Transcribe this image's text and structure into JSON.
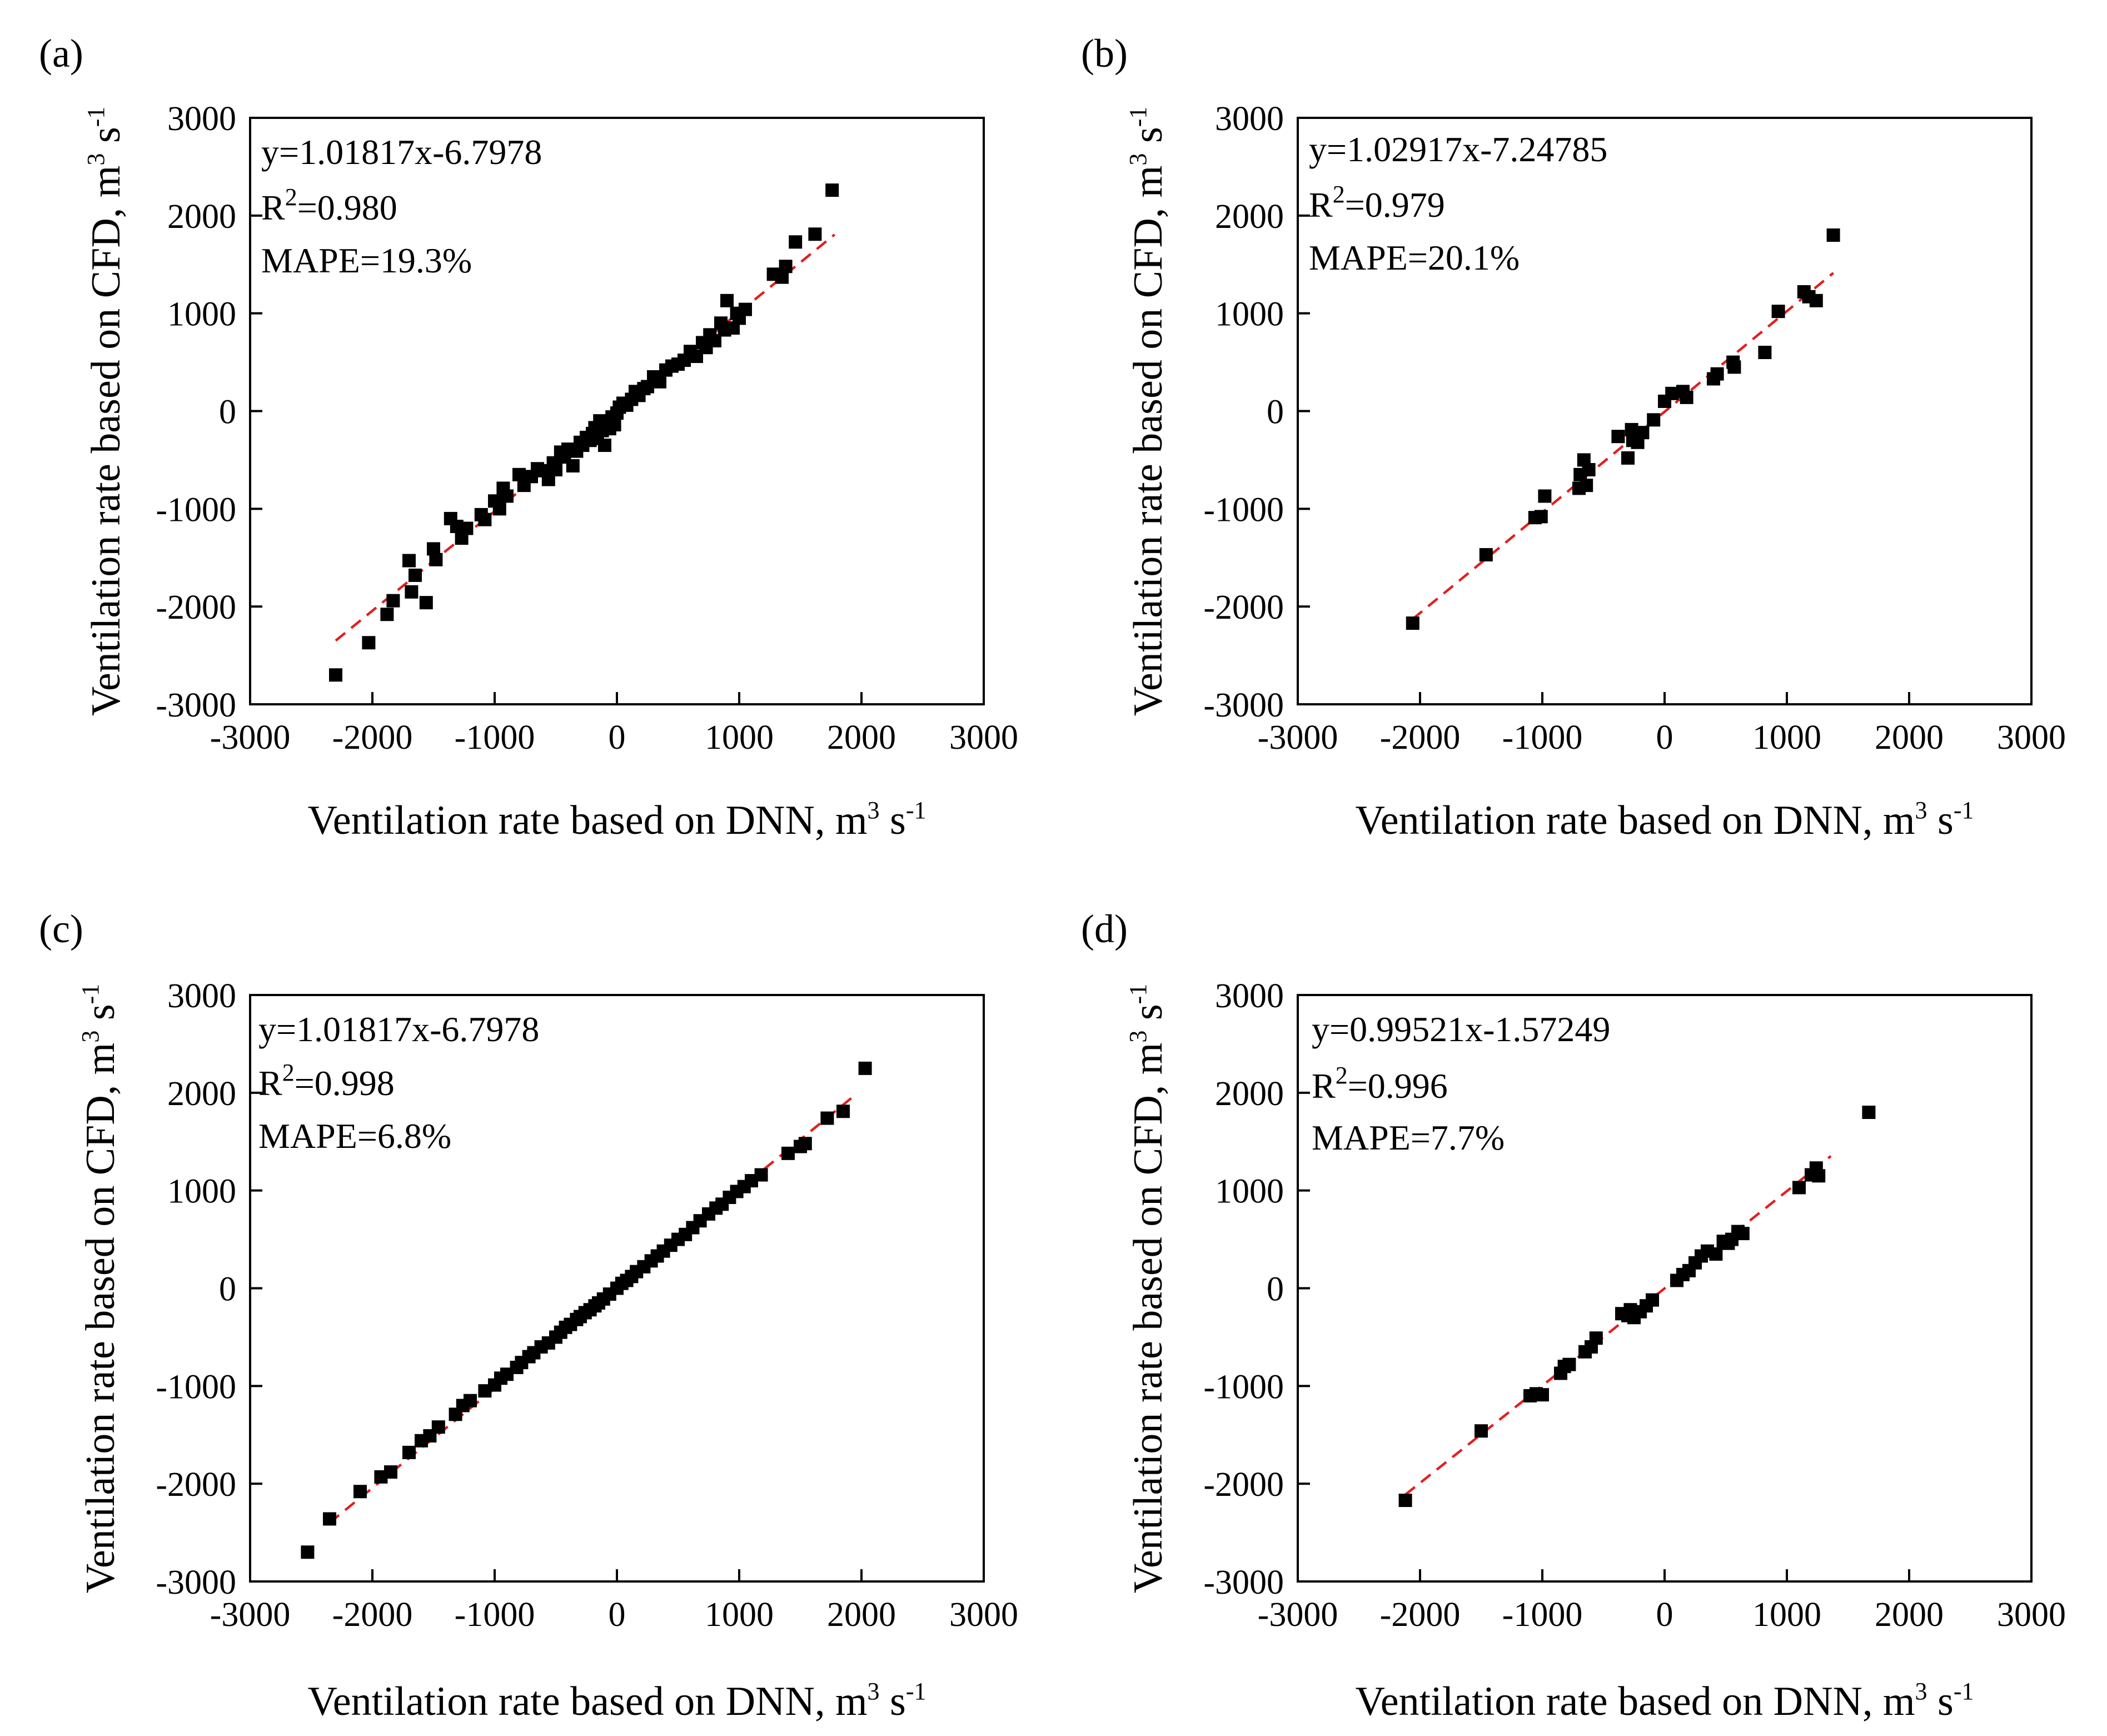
{
  "figure": {
    "panels": [
      {
        "label": "(a)",
        "annotations": {
          "equation": "y=1.01817x-6.7978",
          "r2_prefix": "R",
          "r2_sup": "2",
          "r2_value": "=0.980",
          "mape": "MAPE=19.3%"
        },
        "xlabel": {
          "text": "Ventilation rate based on DNN, m",
          "sup1": "3",
          "mid": " s",
          "sup2": "-1"
        },
        "ylabel": {
          "text": "Ventilation rate based on CFD, m",
          "sup1": "3",
          "mid": " s",
          "sup2": "-1"
        }
      },
      {
        "label": "(b)",
        "annotations": {
          "equation": "y=1.02917x-7.24785",
          "r2_prefix": "R",
          "r2_sup": "2",
          "r2_value": "=0.979",
          "mape": "MAPE=20.1%"
        },
        "xlabel": {
          "text": "Ventilation rate based on DNN, m",
          "sup1": "3",
          "mid": " s",
          "sup2": "-1"
        },
        "ylabel": {
          "text": "Ventilation rate based on CFD, m",
          "sup1": "3",
          "mid": " s",
          "sup2": "-1"
        }
      },
      {
        "label": "(c)",
        "annotations": {
          "equation": "y=1.01817x-6.7978",
          "r2_prefix": "R",
          "r2_sup": "2",
          "r2_value": "=0.998",
          "mape": "MAPE=6.8%"
        },
        "xlabel": {
          "text": "Ventilation rate based on DNN, m",
          "sup1": "3",
          "mid": " s",
          "sup2": "-1"
        },
        "ylabel": {
          "text": "Ventilation rate based on CFD, m",
          "sup1": "3",
          "mid": " s",
          "sup2": "-1"
        }
      },
      {
        "label": "(d)",
        "annotations": {
          "equation": "y=0.99521x-1.57249",
          "r2_prefix": "R",
          "r2_sup": "2",
          "r2_value": "=0.996",
          "mape": "MAPE=7.7%"
        },
        "xlabel": {
          "text": "Ventilation rate based on DNN, m",
          "sup1": "3",
          "mid": " s",
          "sup2": "-1"
        },
        "ylabel": {
          "text": "Ventilation rate based on CFD, m",
          "sup1": "3",
          "mid": " s",
          "sup2": "-1"
        }
      }
    ]
  },
  "chart_data": [
    {
      "type": "scatter",
      "panel": "(a)",
      "xlim": [
        -3000,
        3000
      ],
      "ylim": [
        -3000,
        3000
      ],
      "xticks": [
        -3000,
        -2000,
        -1000,
        0,
        1000,
        2000,
        3000
      ],
      "yticks": [
        -3000,
        -2000,
        -1000,
        0,
        1000,
        2000,
        3000
      ],
      "fit": {
        "slope": 1.01817,
        "intercept": -6.7978,
        "x_range": [
          -2300,
          1780
        ],
        "color": "#e02020",
        "style": "dashed"
      },
      "marker_color": "#000000",
      "points": [
        [
          -2300,
          -2700
        ],
        [
          -2030,
          -2370
        ],
        [
          -1880,
          -2080
        ],
        [
          -1830,
          -1940
        ],
        [
          -1700,
          -1530
        ],
        [
          -1680,
          -1850
        ],
        [
          -1650,
          -1680
        ],
        [
          -1560,
          -1960
        ],
        [
          -1500,
          -1410
        ],
        [
          -1480,
          -1520
        ],
        [
          -1360,
          -1100
        ],
        [
          -1310,
          -1180
        ],
        [
          -1270,
          -1300
        ],
        [
          -1230,
          -1200
        ],
        [
          -1110,
          -1060
        ],
        [
          -1080,
          -1110
        ],
        [
          -1000,
          -920
        ],
        [
          -960,
          -1000
        ],
        [
          -930,
          -790
        ],
        [
          -900,
          -870
        ],
        [
          -800,
          -650
        ],
        [
          -760,
          -760
        ],
        [
          -700,
          -670
        ],
        [
          -650,
          -590
        ],
        [
          -600,
          -610
        ],
        [
          -560,
          -700
        ],
        [
          -520,
          -530
        ],
        [
          -500,
          -600
        ],
        [
          -460,
          -420
        ],
        [
          -430,
          -470
        ],
        [
          -400,
          -390
        ],
        [
          -360,
          -560
        ],
        [
          -330,
          -410
        ],
        [
          -300,
          -320
        ],
        [
          -280,
          -350
        ],
        [
          -250,
          -270
        ],
        [
          -220,
          -300
        ],
        [
          -200,
          -230
        ],
        [
          -180,
          -170
        ],
        [
          -160,
          -280
        ],
        [
          -140,
          -100
        ],
        [
          -120,
          -200
        ],
        [
          -100,
          -350
        ],
        [
          -80,
          -120
        ],
        [
          -60,
          -180
        ],
        [
          -40,
          -60
        ],
        [
          -20,
          -140
        ],
        [
          0,
          -20
        ],
        [
          20,
          40
        ],
        [
          50,
          80
        ],
        [
          80,
          60
        ],
        [
          120,
          120
        ],
        [
          150,
          200
        ],
        [
          180,
          160
        ],
        [
          220,
          230
        ],
        [
          250,
          250
        ],
        [
          300,
          350
        ],
        [
          350,
          300
        ],
        [
          400,
          420
        ],
        [
          450,
          460
        ],
        [
          500,
          480
        ],
        [
          550,
          520
        ],
        [
          600,
          610
        ],
        [
          650,
          560
        ],
        [
          700,
          700
        ],
        [
          730,
          650
        ],
        [
          760,
          780
        ],
        [
          800,
          720
        ],
        [
          850,
          900
        ],
        [
          880,
          830
        ],
        [
          900,
          1130
        ],
        [
          950,
          850
        ],
        [
          980,
          1000
        ],
        [
          1000,
          950
        ],
        [
          1050,
          1040
        ],
        [
          1280,
          1400
        ],
        [
          1350,
          1370
        ],
        [
          1380,
          1480
        ],
        [
          1460,
          1730
        ],
        [
          1620,
          1810
        ],
        [
          1760,
          2260
        ]
      ]
    },
    {
      "type": "scatter",
      "panel": "(b)",
      "xlim": [
        -3000,
        3000
      ],
      "ylim": [
        -3000,
        3000
      ],
      "xticks": [
        -3000,
        -2000,
        -1000,
        0,
        1000,
        2000,
        3000
      ],
      "yticks": [
        -3000,
        -2000,
        -1000,
        0,
        1000,
        2000,
        3000
      ],
      "fit": {
        "slope": 1.02917,
        "intercept": -7.24785,
        "x_range": [
          -2060,
          1380
        ],
        "color": "#e02020",
        "style": "dashed"
      },
      "marker_color": "#000000",
      "points": [
        [
          -2060,
          -2170
        ],
        [
          -1460,
          -1470
        ],
        [
          -1060,
          -1090
        ],
        [
          -1010,
          -1080
        ],
        [
          -980,
          -870
        ],
        [
          -700,
          -790
        ],
        [
          -690,
          -650
        ],
        [
          -660,
          -500
        ],
        [
          -640,
          -760
        ],
        [
          -620,
          -600
        ],
        [
          -380,
          -260
        ],
        [
          -300,
          -480
        ],
        [
          -270,
          -190
        ],
        [
          -260,
          -300
        ],
        [
          -220,
          -320
        ],
        [
          -180,
          -220
        ],
        [
          -90,
          -90
        ],
        [
          0,
          100
        ],
        [
          60,
          180
        ],
        [
          150,
          200
        ],
        [
          180,
          140
        ],
        [
          400,
          330
        ],
        [
          430,
          380
        ],
        [
          560,
          500
        ],
        [
          570,
          450
        ],
        [
          820,
          600
        ],
        [
          930,
          1020
        ],
        [
          1140,
          1220
        ],
        [
          1180,
          1170
        ],
        [
          1240,
          1130
        ],
        [
          1380,
          1800
        ]
      ]
    },
    {
      "type": "scatter",
      "panel": "(c)",
      "xlim": [
        -3000,
        3000
      ],
      "ylim": [
        -3000,
        3000
      ],
      "xticks": [
        -3000,
        -2000,
        -1000,
        0,
        1000,
        2000,
        3000
      ],
      "yticks": [
        -3000,
        -2000,
        -1000,
        0,
        1000,
        2000,
        3000
      ],
      "fit": {
        "slope": 1.01817,
        "intercept": -6.7978,
        "x_range": [
          -2350,
          1950
        ],
        "color": "#e02020",
        "style": "dashed"
      },
      "marker_color": "#000000",
      "points": [
        [
          -2530,
          -2700
        ],
        [
          -2350,
          -2360
        ],
        [
          -2100,
          -2080
        ],
        [
          -1930,
          -1930
        ],
        [
          -1850,
          -1880
        ],
        [
          -1700,
          -1680
        ],
        [
          -1600,
          -1560
        ],
        [
          -1530,
          -1510
        ],
        [
          -1460,
          -1420
        ],
        [
          -1320,
          -1290
        ],
        [
          -1260,
          -1200
        ],
        [
          -1200,
          -1150
        ],
        [
          -1080,
          -1050
        ],
        [
          -1000,
          -990
        ],
        [
          -950,
          -920
        ],
        [
          -900,
          -880
        ],
        [
          -820,
          -810
        ],
        [
          -780,
          -760
        ],
        [
          -720,
          -700
        ],
        [
          -680,
          -660
        ],
        [
          -620,
          -600
        ],
        [
          -560,
          -560
        ],
        [
          -500,
          -500
        ],
        [
          -460,
          -450
        ],
        [
          -420,
          -400
        ],
        [
          -380,
          -370
        ],
        [
          -330,
          -320
        ],
        [
          -300,
          -290
        ],
        [
          -260,
          -250
        ],
        [
          -220,
          -220
        ],
        [
          -180,
          -180
        ],
        [
          -150,
          -150
        ],
        [
          -110,
          -110
        ],
        [
          -60,
          -60
        ],
        [
          0,
          0
        ],
        [
          40,
          50
        ],
        [
          80,
          80
        ],
        [
          120,
          120
        ],
        [
          160,
          170
        ],
        [
          220,
          220
        ],
        [
          280,
          280
        ],
        [
          330,
          330
        ],
        [
          380,
          380
        ],
        [
          440,
          440
        ],
        [
          500,
          500
        ],
        [
          560,
          550
        ],
        [
          620,
          620
        ],
        [
          680,
          690
        ],
        [
          750,
          760
        ],
        [
          810,
          820
        ],
        [
          860,
          860
        ],
        [
          920,
          930
        ],
        [
          980,
          990
        ],
        [
          1040,
          1040
        ],
        [
          1100,
          1100
        ],
        [
          1180,
          1160
        ],
        [
          1400,
          1380
        ],
        [
          1500,
          1450
        ],
        [
          1540,
          1480
        ],
        [
          1720,
          1740
        ],
        [
          1850,
          1810
        ],
        [
          2030,
          2250
        ]
      ]
    },
    {
      "type": "scatter",
      "panel": "(d)",
      "xlim": [
        -3000,
        3000
      ],
      "ylim": [
        -3000,
        3000
      ],
      "xticks": [
        -3000,
        -2000,
        -1000,
        0,
        1000,
        2000,
        3000
      ],
      "yticks": [
        -3000,
        -2000,
        -1000,
        0,
        1000,
        2000,
        3000
      ],
      "fit": {
        "slope": 0.99521,
        "intercept": -1.57249,
        "x_range": [
          -2120,
          1360
        ],
        "color": "#e02020",
        "style": "dashed"
      },
      "marker_color": "#000000",
      "points": [
        [
          -2120,
          -2170
        ],
        [
          -1500,
          -1460
        ],
        [
          -1100,
          -1100
        ],
        [
          -1050,
          -1080
        ],
        [
          -1000,
          -1090
        ],
        [
          -850,
          -870
        ],
        [
          -820,
          -800
        ],
        [
          -780,
          -780
        ],
        [
          -650,
          -650
        ],
        [
          -600,
          -600
        ],
        [
          -560,
          -510
        ],
        [
          -350,
          -260
        ],
        [
          -300,
          -280
        ],
        [
          -280,
          -220
        ],
        [
          -250,
          -300
        ],
        [
          -200,
          -240
        ],
        [
          -150,
          -180
        ],
        [
          -100,
          -120
        ],
        [
          100,
          80
        ],
        [
          150,
          140
        ],
        [
          200,
          180
        ],
        [
          250,
          260
        ],
        [
          300,
          330
        ],
        [
          350,
          380
        ],
        [
          420,
          350
        ],
        [
          480,
          480
        ],
        [
          520,
          460
        ],
        [
          550,
          500
        ],
        [
          600,
          580
        ],
        [
          640,
          560
        ],
        [
          1100,
          1030
        ],
        [
          1200,
          1160
        ],
        [
          1240,
          1230
        ],
        [
          1260,
          1150
        ],
        [
          1670,
          1800
        ]
      ]
    }
  ]
}
